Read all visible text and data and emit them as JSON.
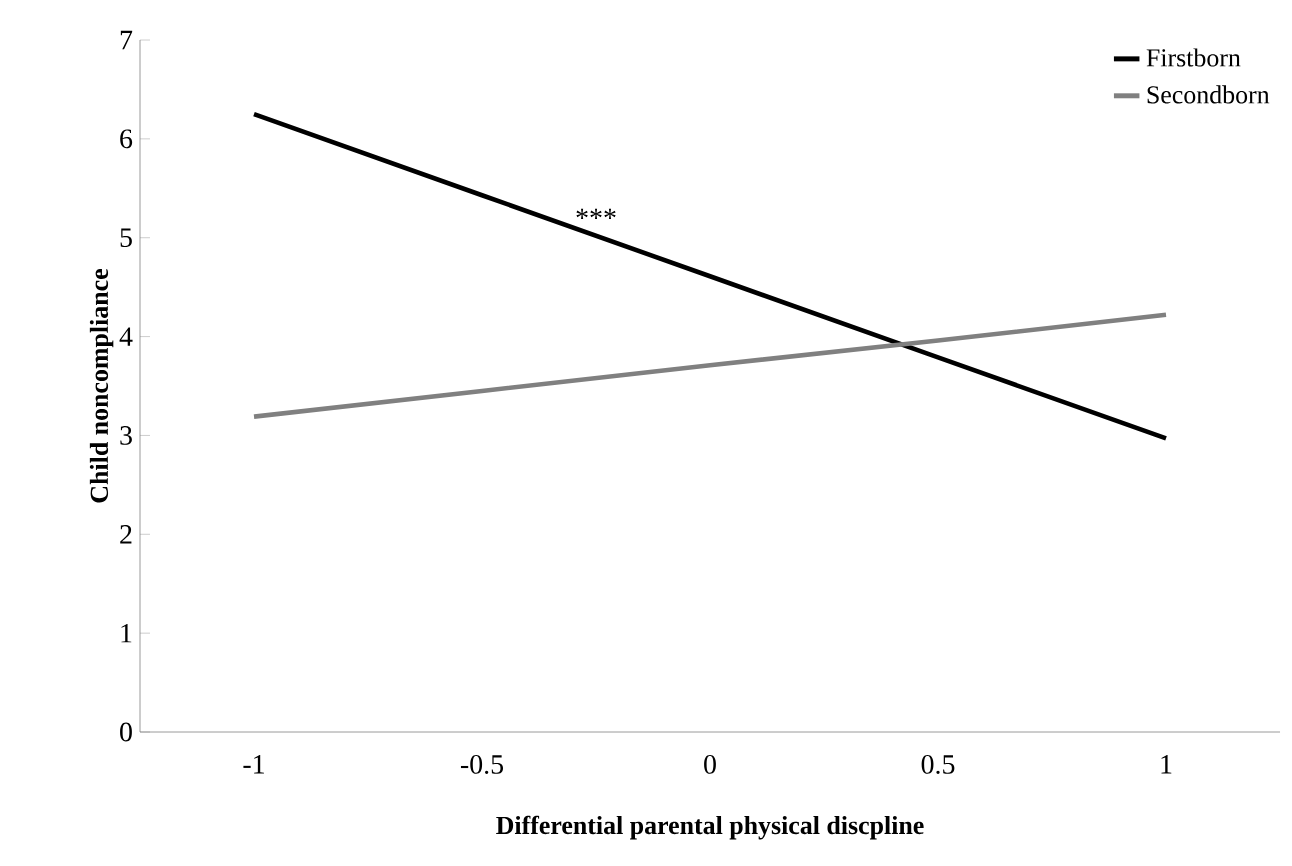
{
  "chart_data": {
    "type": "line",
    "xlabel": "Differential parental physical discpline",
    "ylabel": "Child noncompliance",
    "categories": [
      "-1",
      "-0.5",
      "0",
      "0.5",
      "1"
    ],
    "series": [
      {
        "name": "Firstborn",
        "color": "#000000",
        "values": [
          6.25,
          5.43,
          4.61,
          3.79,
          2.97
        ]
      },
      {
        "name": "Secondborn",
        "color": "#808080",
        "values": [
          3.19,
          3.45,
          3.71,
          3.96,
          4.22
        ]
      }
    ],
    "ylim": [
      0,
      7
    ],
    "yticks": [
      0,
      1,
      2,
      3,
      4,
      5,
      6,
      7
    ],
    "grid": false,
    "legend": "top right",
    "marker": "none",
    "line_style": "solid",
    "annotations": [
      "***"
    ]
  }
}
